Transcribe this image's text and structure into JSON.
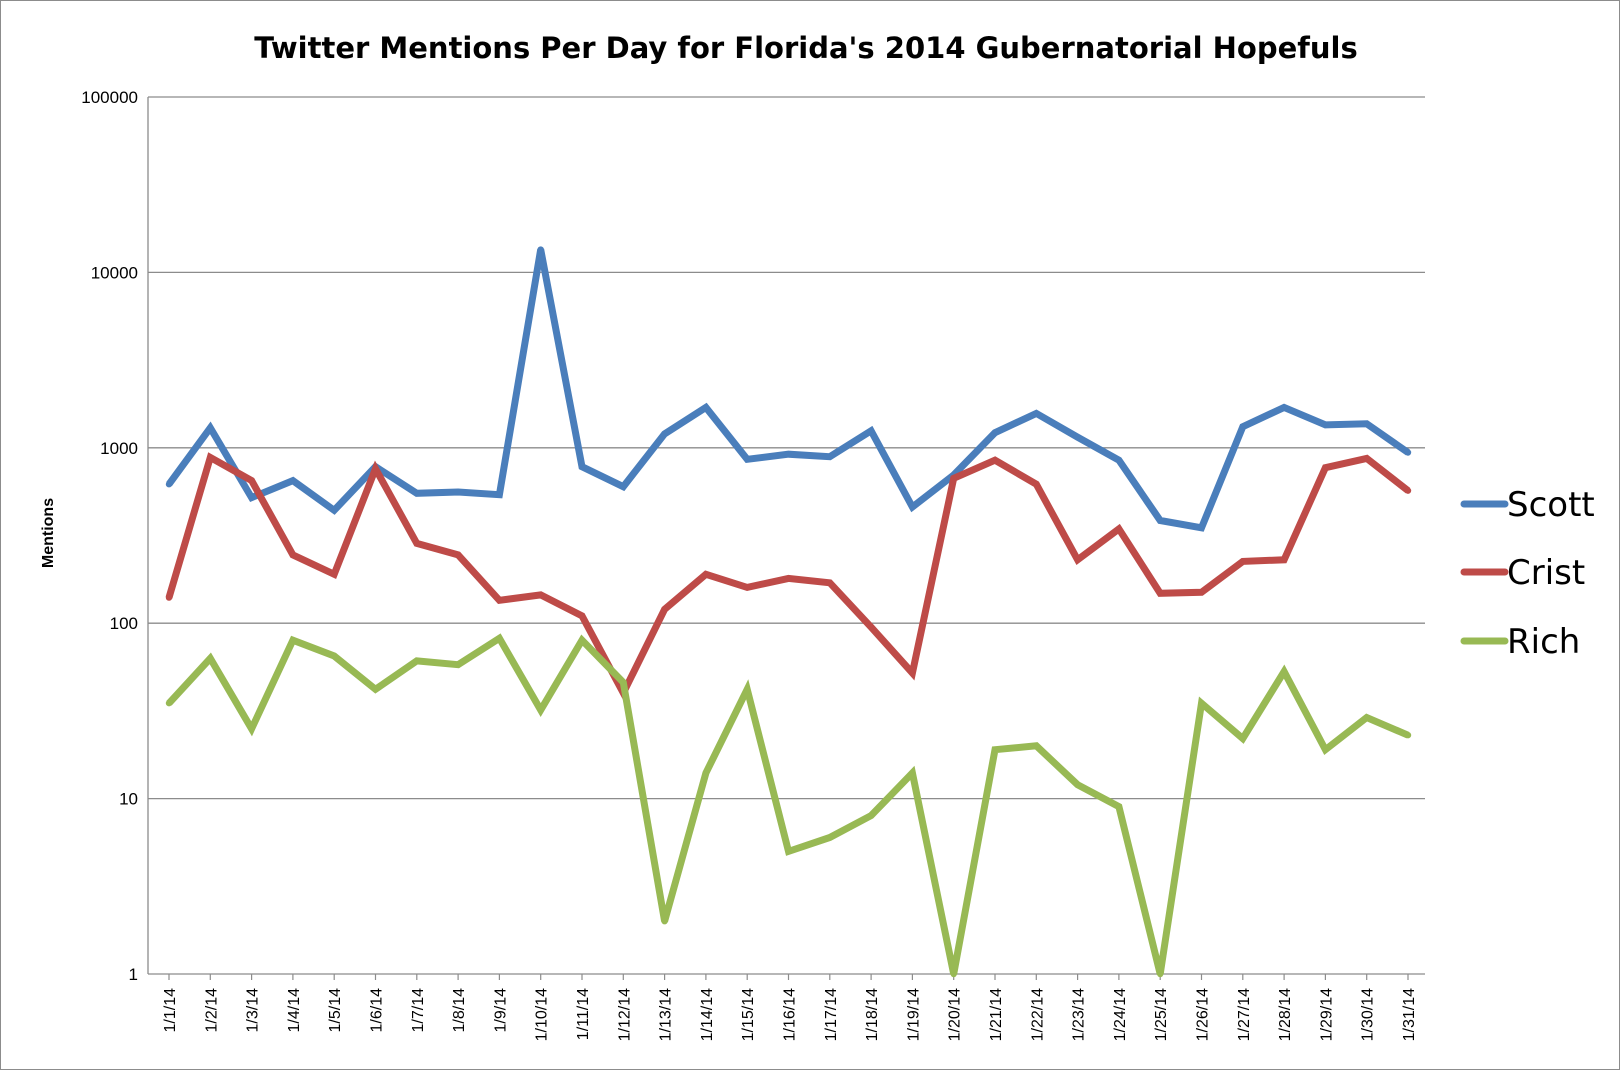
{
  "chart_data": {
    "type": "line",
    "title": "Twitter Mentions Per Day for Florida's 2014 Gubernatorial Hopefuls",
    "ylabel": "Mentions",
    "xlabel": "",
    "yscale": "log",
    "ylim": [
      1,
      100000
    ],
    "yticks": [
      "1",
      "10",
      "100",
      "1000",
      "10000",
      "100000"
    ],
    "grid": true,
    "legend_position": "right",
    "categories": [
      "1/1/14",
      "1/2/14",
      "1/3/14",
      "1/4/14",
      "1/5/14",
      "1/6/14",
      "1/7/14",
      "1/8/14",
      "1/9/14",
      "1/10/14",
      "1/11/14",
      "1/12/14",
      "1/13/14",
      "1/14/14",
      "1/15/14",
      "1/16/14",
      "1/17/14",
      "1/18/14",
      "1/19/14",
      "1/20/14",
      "1/21/14",
      "1/22/14",
      "1/23/14",
      "1/24/14",
      "1/25/14",
      "1/26/14",
      "1/27/14",
      "1/28/14",
      "1/29/14",
      "1/30/14",
      "1/31/14"
    ],
    "series": [
      {
        "name": "Scott",
        "color": "#4a7ebb",
        "values": [
          620,
          1300,
          520,
          650,
          440,
          780,
          550,
          560,
          540,
          13500,
          780,
          600,
          1200,
          1700,
          860,
          920,
          890,
          1250,
          460,
          700,
          1220,
          1570,
          1150,
          850,
          385,
          350,
          1320,
          1700,
          1350,
          1370,
          940
        ]
      },
      {
        "name": "Crist",
        "color": "#be4b48",
        "values": [
          140,
          880,
          650,
          245,
          190,
          760,
          285,
          245,
          135,
          145,
          110,
          40,
          120,
          190,
          160,
          180,
          170,
          95,
          52,
          670,
          850,
          620,
          230,
          345,
          148,
          150,
          225,
          230,
          770,
          870,
          570
        ]
      },
      {
        "name": "Rich",
        "color": "#98b954",
        "values": [
          35,
          63,
          25,
          80,
          65,
          42,
          61,
          58,
          82,
          32,
          80,
          46,
          2,
          14,
          42,
          5,
          6,
          8,
          14,
          1,
          19,
          20,
          12,
          9,
          1,
          35,
          22,
          53,
          19,
          29,
          23
        ]
      }
    ]
  }
}
